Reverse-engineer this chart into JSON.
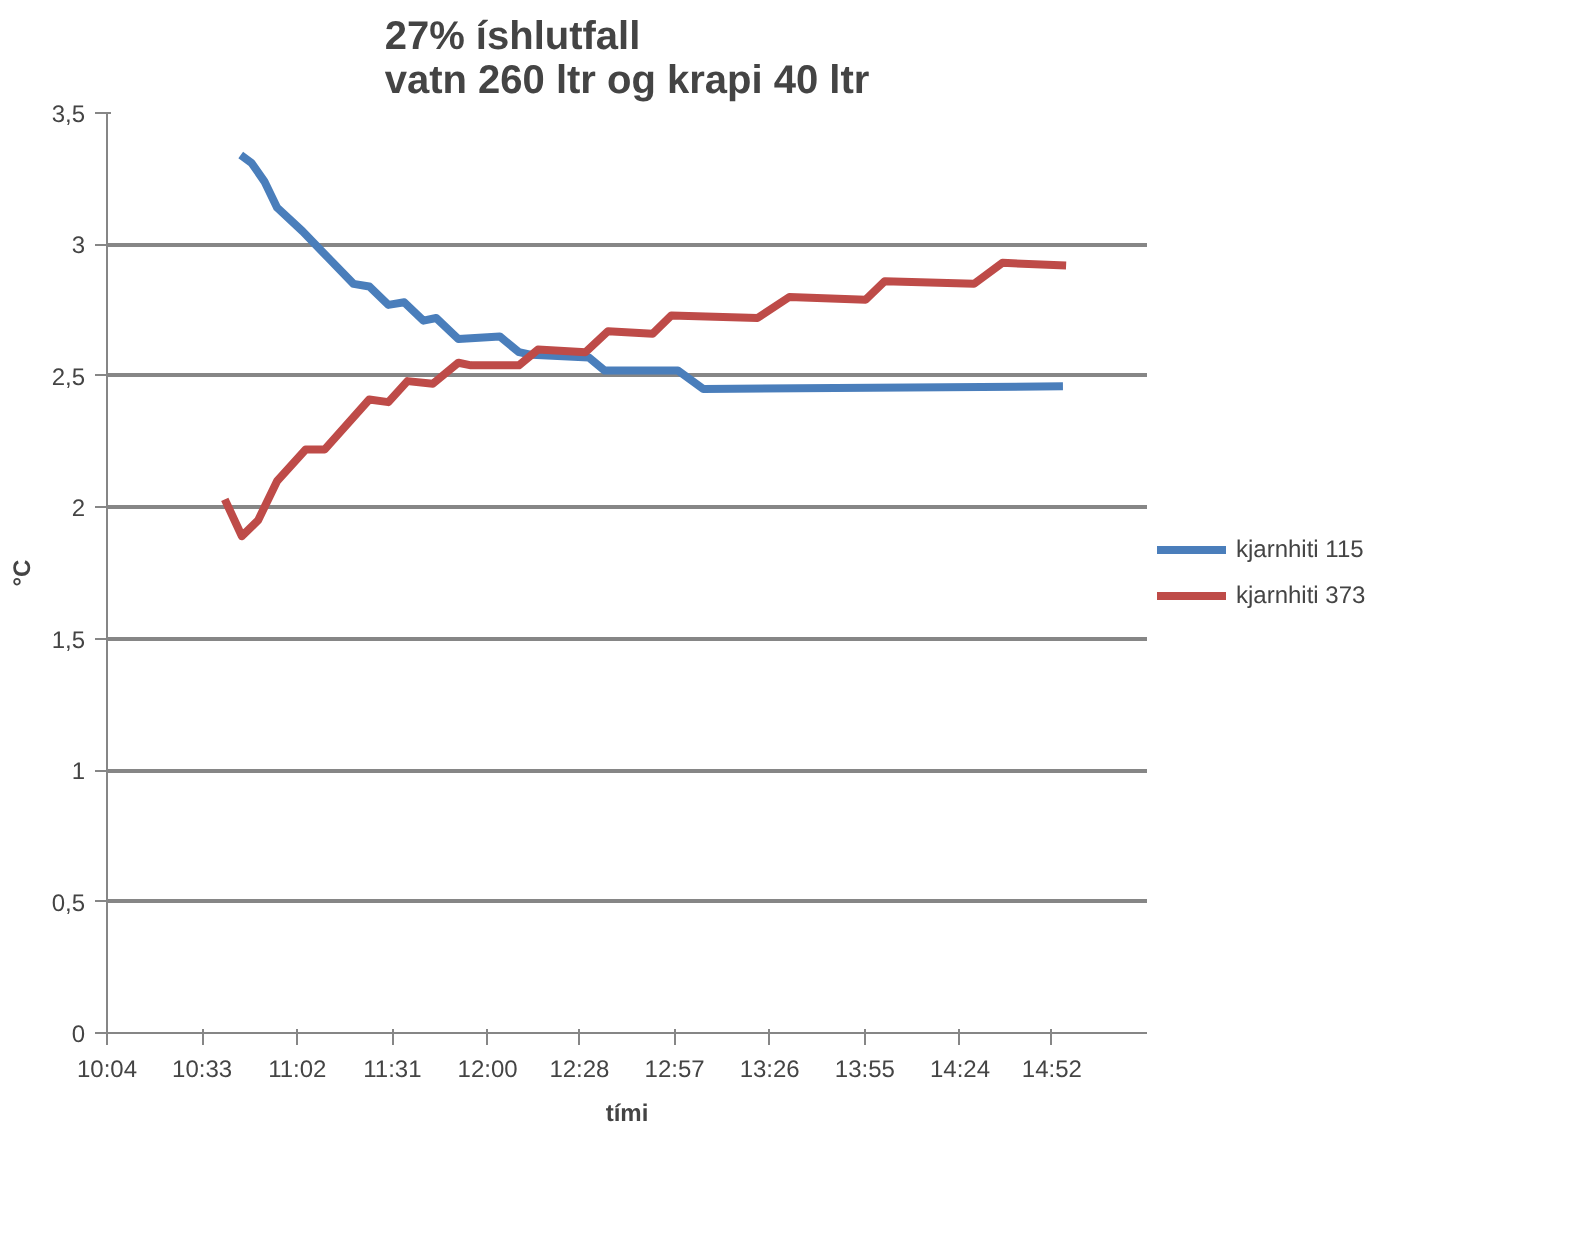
{
  "chart_data": {
    "type": "line",
    "title": "27% íshlutfall\nvatn 260 ltr og krapi 40 ltr",
    "xlabel": "tími",
    "ylabel": "°C",
    "xlim": [
      10.0667,
      15.35
    ],
    "xticks": [
      {
        "value": 10.0667,
        "label": "10:04"
      },
      {
        "value": 10.55,
        "label": "10:33"
      },
      {
        "value": 11.0333,
        "label": "11:02"
      },
      {
        "value": 11.5167,
        "label": "11:31"
      },
      {
        "value": 12.0,
        "label": "12:00"
      },
      {
        "value": 12.4667,
        "label": "12:28"
      },
      {
        "value": 12.95,
        "label": "12:57"
      },
      {
        "value": 13.4333,
        "label": "13:26"
      },
      {
        "value": 13.9167,
        "label": "13:55"
      },
      {
        "value": 14.4,
        "label": "14:24"
      },
      {
        "value": 14.8667,
        "label": "14:52"
      }
    ],
    "ylim": [
      0,
      3.5
    ],
    "yticks": [
      {
        "value": 0,
        "label": "0"
      },
      {
        "value": 0.5,
        "label": "0,5"
      },
      {
        "value": 1,
        "label": "1"
      },
      {
        "value": 1.5,
        "label": "1,5"
      },
      {
        "value": 2,
        "label": "2"
      },
      {
        "value": 2.5,
        "label": "2,5"
      },
      {
        "value": 3,
        "label": "3"
      },
      {
        "value": 3.5,
        "label": "3,5"
      }
    ],
    "grid": "y",
    "legend": "right",
    "marker": "none",
    "line_style": "solid",
    "series": [
      {
        "name": "kjarnhiti 115",
        "color": "#4a7ebb",
        "x": [
          10.746,
          10.801,
          10.866,
          10.931,
          11.06,
          11.189,
          11.319,
          11.399,
          11.496,
          11.577,
          11.674,
          11.739,
          11.852,
          12.062,
          12.159,
          12.224,
          12.514,
          12.595,
          12.967,
          13.096,
          14.923
        ],
        "values": [
          3.34,
          3.31,
          3.24,
          3.14,
          3.05,
          2.95,
          2.85,
          2.84,
          2.77,
          2.78,
          2.71,
          2.72,
          2.64,
          2.65,
          2.59,
          2.58,
          2.57,
          2.52,
          2.52,
          2.45,
          2.46
        ]
      },
      {
        "name": "kjarnhiti 373",
        "color": "#be4b48",
        "x": [
          10.665,
          10.752,
          10.834,
          10.931,
          11.076,
          11.173,
          11.399,
          11.496,
          11.593,
          11.722,
          11.852,
          11.916,
          12.159,
          12.256,
          12.498,
          12.612,
          12.838,
          12.934,
          13.371,
          13.533,
          13.921,
          14.018,
          14.471,
          14.616,
          14.939
        ],
        "values": [
          2.03,
          1.89,
          1.95,
          2.1,
          2.22,
          2.22,
          2.41,
          2.4,
          2.48,
          2.47,
          2.55,
          2.54,
          2.54,
          2.6,
          2.59,
          2.67,
          2.66,
          2.73,
          2.72,
          2.8,
          2.79,
          2.86,
          2.85,
          2.93,
          2.92
        ]
      }
    ]
  }
}
